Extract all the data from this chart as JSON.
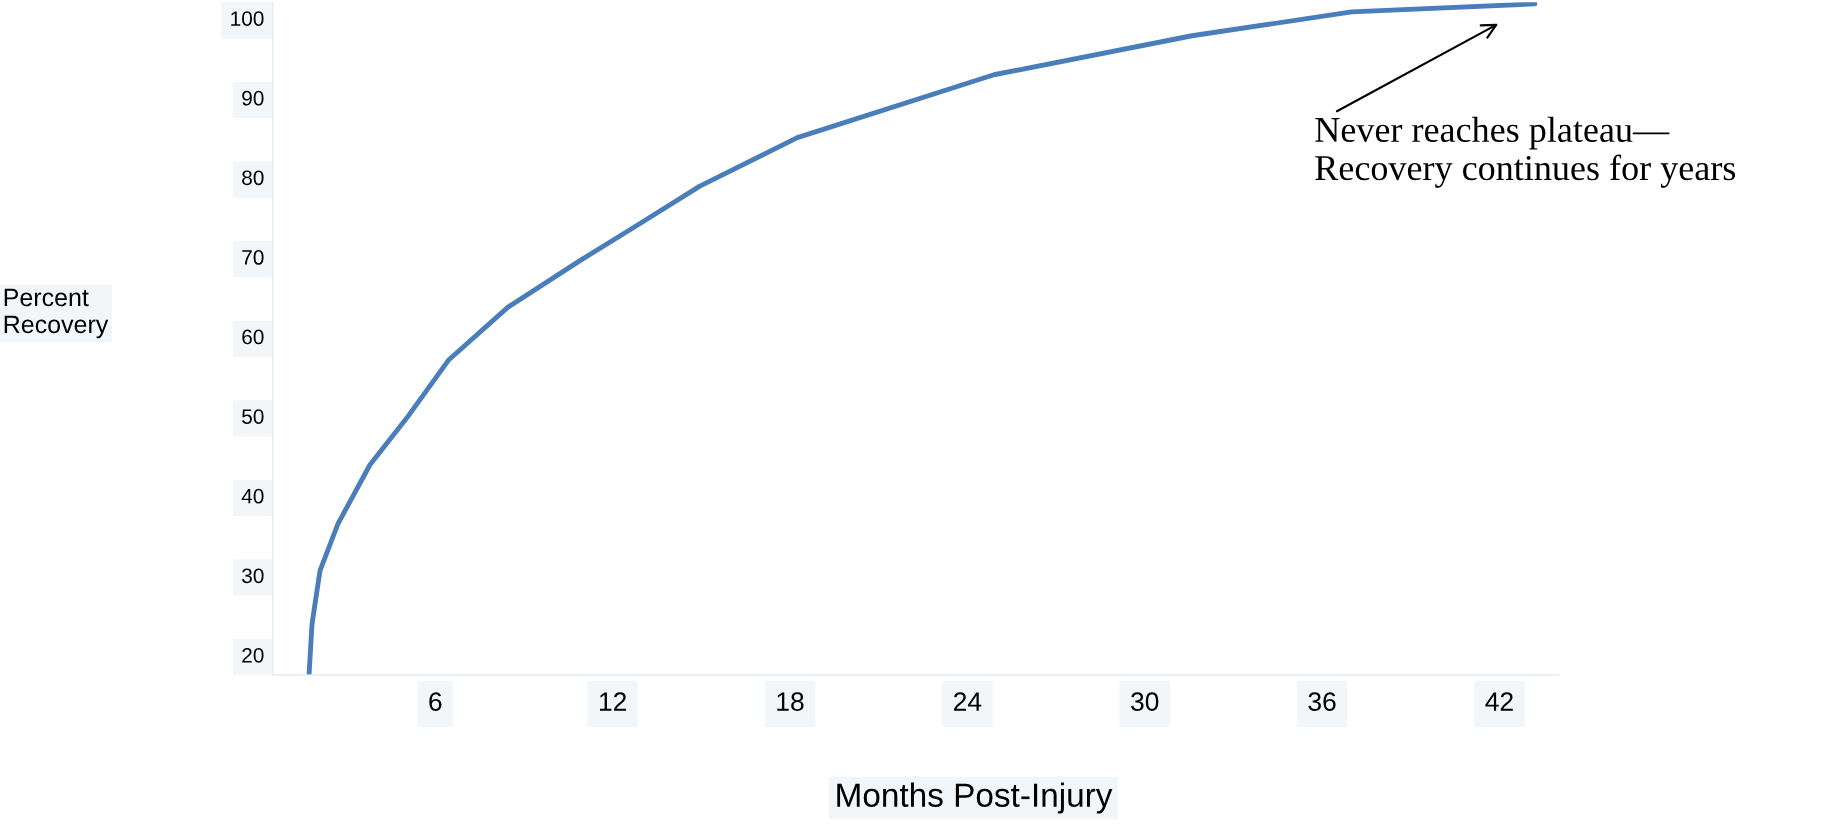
{
  "chart_data": {
    "type": "line",
    "xlabel": "Months Post-Injury",
    "ylabel": "Percent\nRecovery",
    "x": [
      1.73,
      1.83,
      2.1,
      2.71,
      3.79,
      5.04,
      6.46,
      8.46,
      10.96,
      12.75,
      14.95,
      18.25,
      24.9,
      31.6,
      37.0,
      43.2
    ],
    "series": [
      {
        "color": "#4a7ebb",
        "values": [
          17.6,
          23.9,
          30.6,
          36.5,
          43.9,
          49.8,
          57.1,
          63.7,
          69.7,
          73.8,
          78.9,
          85.0,
          92.9,
          97.8,
          100.8,
          101.8
        ]
      }
    ],
    "xlim": [
      0.5,
      44
    ],
    "xticks": [
      6,
      12,
      18,
      24,
      30,
      36,
      42
    ],
    "ylim": [
      17.5,
      102
    ],
    "yticks": [
      20,
      30,
      40,
      50,
      60,
      70,
      80,
      90,
      100
    ],
    "annotations": [
      "Never reaches plateau—\nRecovery continues for years"
    ],
    "grid": false,
    "legend": false,
    "marker": "none",
    "line_style": "solid"
  }
}
